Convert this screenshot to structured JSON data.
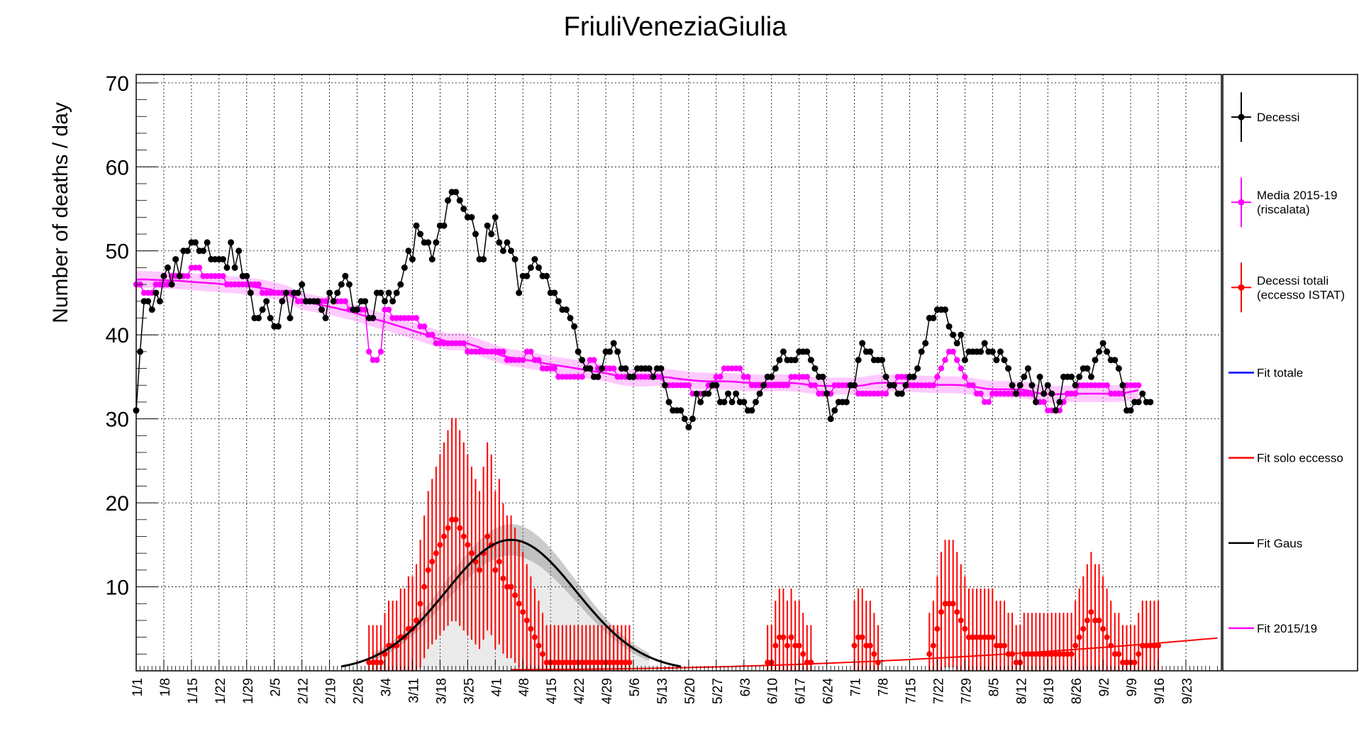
{
  "chart_data": {
    "type": "line",
    "title": "FriuliVeneziaGiulia",
    "ylabel": "Number of deaths / day",
    "xlabel": "",
    "ylim": [
      0,
      71
    ],
    "yticks": [
      10,
      20,
      30,
      40,
      50,
      60,
      70
    ],
    "grid": true,
    "legend_position": "right",
    "x_tick_labels": [
      "1/1",
      "1/8",
      "1/15",
      "1/22",
      "1/29",
      "2/5",
      "2/12",
      "2/19",
      "2/26",
      "3/4",
      "3/11",
      "3/18",
      "3/25",
      "4/1",
      "4/8",
      "4/15",
      "4/22",
      "4/29",
      "5/6",
      "5/13",
      "5/20",
      "5/27",
      "6/3",
      "6/10",
      "6/17",
      "6/24",
      "7/1",
      "7/8",
      "7/15",
      "7/22",
      "7/29",
      "8/5",
      "8/12",
      "8/19",
      "8/26",
      "9/2",
      "9/9",
      "9/16",
      "9/23"
    ],
    "legend": [
      {
        "label": "Decessi",
        "color": "#000000",
        "style": "marker"
      },
      {
        "label": "Media 2015-19\n(riscalata)",
        "color": "#ff00ff",
        "style": "marker"
      },
      {
        "label": "Decessi totali\n(eccesso ISTAT)",
        "color": "#ff0000",
        "style": "marker"
      },
      {
        "label": "Fit totale",
        "color": "#0000ff",
        "style": "line"
      },
      {
        "label": "Fit solo eccesso",
        "color": "#ff0000",
        "style": "line"
      },
      {
        "label": "Fit Gaus",
        "color": "#000000",
        "style": "line"
      },
      {
        "label": "Fit 2015/19",
        "color": "#ff00ff",
        "style": "line"
      }
    ],
    "colors": {
      "decessi": "#000000",
      "media": "#ff00ff",
      "eccesso": "#ff0000",
      "fit_totale": "#0000ff",
      "fit_gaus": "#000000"
    },
    "series": [
      {
        "name": "Decessi",
        "key": "decessi",
        "color": "#000000",
        "values": [
          31,
          38,
          44,
          44,
          43,
          45,
          44,
          47,
          48,
          46,
          49,
          47,
          50,
          50,
          51,
          51,
          50,
          50,
          51,
          49,
          49,
          49,
          49,
          48,
          51,
          48,
          50,
          47,
          47,
          45,
          42,
          42,
          43,
          44,
          42,
          41,
          41,
          44,
          45,
          42,
          45,
          45,
          46,
          44,
          44,
          44,
          44,
          43,
          42,
          45,
          44,
          45,
          46,
          47,
          46,
          43,
          43,
          44,
          44,
          42,
          42,
          45,
          45,
          44,
          45,
          44,
          45,
          46,
          48,
          50,
          49,
          53,
          52,
          51,
          51,
          49,
          51,
          53,
          53,
          56,
          57,
          57,
          56,
          55,
          54,
          54,
          52,
          49,
          49,
          53,
          52,
          54,
          51,
          50,
          51,
          50,
          49,
          45,
          47,
          47,
          48,
          49,
          48,
          47,
          47,
          45,
          45,
          44,
          43,
          43,
          42,
          41,
          38,
          37,
          36,
          36,
          35,
          35,
          36,
          38,
          38,
          39,
          38,
          36,
          36,
          35,
          35,
          36,
          36,
          36,
          36,
          35,
          36,
          36,
          34,
          32,
          31,
          31,
          31,
          30,
          29,
          30,
          33,
          32,
          33,
          33,
          34,
          34,
          32,
          32,
          33,
          32,
          33,
          32,
          32,
          31,
          31,
          32,
          33,
          34,
          35,
          35,
          36,
          37,
          38,
          37,
          37,
          37,
          38,
          38,
          38,
          37,
          36,
          35,
          35,
          33,
          30,
          31,
          32,
          32,
          32,
          34,
          34,
          37,
          39,
          38,
          38,
          37,
          37,
          37,
          35,
          34,
          34,
          33,
          33,
          34,
          35,
          35,
          36,
          38,
          39,
          42,
          42,
          43,
          43,
          43,
          41,
          40,
          39,
          40,
          37,
          38,
          38,
          38,
          38,
          39,
          38,
          38,
          37,
          38,
          37,
          36,
          34,
          33,
          34,
          35,
          36,
          34,
          32,
          35,
          33,
          34,
          33,
          31,
          32,
          35,
          35,
          35,
          34,
          35,
          36,
          36,
          35,
          37,
          38,
          39,
          38,
          37,
          37,
          36,
          34,
          31,
          31,
          32,
          32,
          33,
          32,
          32
        ]
      },
      {
        "name": "Media 2015-19 (riscalata)",
        "key": "media",
        "color": "#ff00ff",
        "values": [
          46,
          46,
          45,
          45,
          45,
          46,
          46,
          46,
          46,
          47,
          47,
          47,
          47,
          47,
          48,
          48,
          48,
          47,
          47,
          47,
          47,
          47,
          47,
          46,
          46,
          46,
          46,
          46,
          46,
          46,
          46,
          46,
          45,
          45,
          45,
          45,
          45,
          45,
          45,
          45,
          45,
          44,
          44,
          44,
          44,
          44,
          44,
          44,
          44,
          45,
          44,
          44,
          44,
          44,
          43,
          43,
          43,
          43,
          43,
          38,
          37,
          37,
          38,
          43,
          43,
          42,
          42,
          42,
          42,
          42,
          42,
          42,
          41,
          41,
          40,
          40,
          39,
          39,
          39,
          39,
          39,
          39,
          39,
          39,
          38,
          38,
          38,
          38,
          38,
          38,
          38,
          38,
          38,
          38,
          37,
          37,
          37,
          37,
          37,
          38,
          38,
          37,
          37,
          36,
          36,
          36,
          36,
          35,
          35,
          35,
          35,
          35,
          35,
          35,
          36,
          37,
          37,
          36,
          36,
          36,
          36,
          36,
          35,
          35,
          35,
          35,
          35,
          35,
          35,
          35,
          35,
          35,
          35,
          35,
          34,
          34,
          34,
          34,
          34,
          34,
          34,
          33,
          33,
          33,
          33,
          34,
          34,
          35,
          35,
          36,
          36,
          36,
          36,
          36,
          35,
          35,
          34,
          34,
          34,
          34,
          34,
          34,
          34,
          34,
          34,
          34,
          35,
          35,
          35,
          35,
          35,
          34,
          34,
          33,
          33,
          33,
          33,
          34,
          34,
          34,
          34,
          34,
          34,
          33,
          33,
          33,
          33,
          33,
          33,
          33,
          33,
          34,
          34,
          35,
          35,
          35,
          34,
          34,
          34,
          34,
          34,
          34,
          34,
          35,
          36,
          37,
          38,
          38,
          37,
          36,
          35,
          34,
          34,
          33,
          33,
          32,
          32,
          33,
          33,
          33,
          33,
          33,
          33,
          33,
          33,
          33,
          33,
          33,
          32,
          32,
          32,
          31,
          31,
          31,
          31,
          32,
          33,
          33,
          33,
          34,
          34,
          34,
          34,
          34,
          34,
          34,
          34,
          33,
          33,
          33,
          33,
          34,
          34,
          34,
          34
        ]
      },
      {
        "name": "Decessi totali (eccesso ISTAT)",
        "key": "eccesso",
        "color": "#ff0000",
        "values": [
          0,
          0,
          0,
          0,
          0,
          0,
          0,
          0,
          0,
          0,
          0,
          0,
          0,
          0,
          0,
          0,
          0,
          0,
          0,
          0,
          0,
          0,
          0,
          0,
          0,
          0,
          0,
          0,
          0,
          0,
          0,
          0,
          0,
          0,
          0,
          0,
          0,
          0,
          0,
          0,
          0,
          0,
          0,
          0,
          0,
          0,
          0,
          0,
          0,
          0,
          0,
          0,
          0,
          0,
          0,
          0,
          0,
          0,
          0,
          1,
          1,
          1,
          1,
          2,
          3,
          3,
          3,
          4,
          4,
          5,
          5,
          6,
          8,
          10,
          12,
          13,
          14,
          15,
          16,
          17,
          18,
          18,
          17,
          16,
          15,
          14,
          13,
          12,
          14,
          16,
          15,
          12,
          13,
          11,
          10,
          10,
          9,
          8,
          7,
          6,
          5,
          4,
          3,
          2,
          1,
          1,
          1,
          1,
          1,
          1,
          1,
          1,
          1,
          1,
          1,
          1,
          1,
          1,
          1,
          1,
          1,
          1,
          1,
          1,
          1,
          1,
          0,
          0,
          0,
          0,
          0,
          0,
          0,
          0,
          0,
          0,
          0,
          0,
          0,
          0,
          0,
          0,
          0,
          0,
          0,
          0,
          0,
          0,
          0,
          0,
          0,
          0,
          0,
          0,
          0,
          0,
          0,
          0,
          0,
          0,
          1,
          1,
          3,
          4,
          4,
          3,
          4,
          3,
          3,
          2,
          1,
          1,
          0,
          0,
          0,
          0,
          0,
          0,
          0,
          0,
          0,
          0,
          3,
          4,
          4,
          3,
          3,
          2,
          1,
          0,
          0,
          0,
          0,
          0,
          0,
          0,
          0,
          0,
          0,
          0,
          0,
          2,
          3,
          5,
          7,
          8,
          8,
          8,
          7,
          6,
          5,
          4,
          4,
          4,
          4,
          4,
          4,
          4,
          3,
          3,
          3,
          2,
          2,
          1,
          1,
          2,
          2,
          2,
          2,
          2,
          2,
          2,
          2,
          2,
          2,
          2,
          2,
          2,
          3,
          4,
          5,
          6,
          7,
          6,
          6,
          5,
          4,
          3,
          2,
          2,
          1,
          1,
          1,
          1,
          2,
          3,
          3,
          3,
          3,
          3
        ]
      },
      {
        "name": "Fit Gaus",
        "key": "fit_gaus",
        "color": "#000000",
        "amplitude": 15.6,
        "mean_day": 95,
        "sigma_days": 16.5
      }
    ]
  }
}
